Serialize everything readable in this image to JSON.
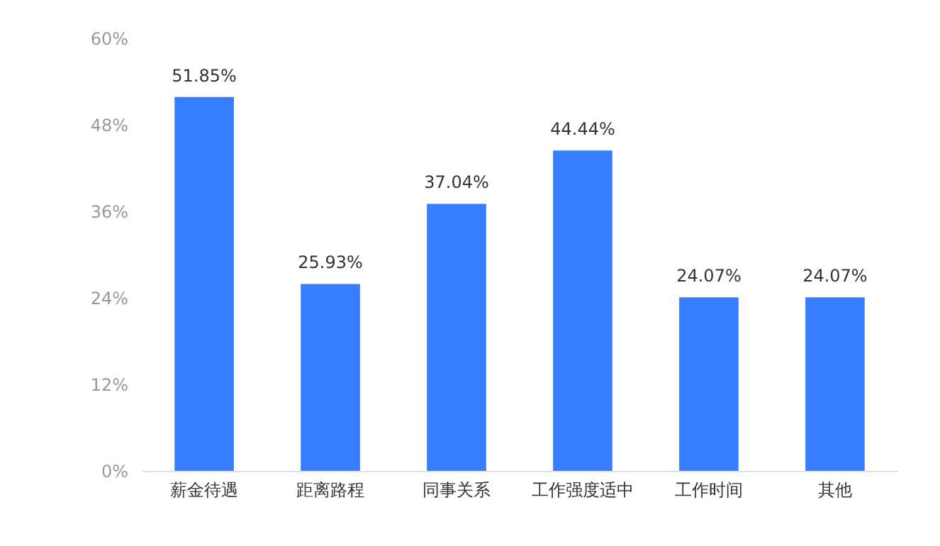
{
  "chart_data": {
    "type": "bar",
    "categories": [
      "薪金待遇",
      "距离路程",
      "同事关系",
      "工作强度适中",
      "工作时间",
      "其他"
    ],
    "values": [
      51.85,
      25.93,
      37.04,
      44.44,
      24.07,
      24.07
    ],
    "value_labels": [
      "51.85%",
      "25.93%",
      "37.04%",
      "44.44%",
      "24.07%",
      "24.07%"
    ],
    "color": "#377dff",
    "ylim": [
      0,
      60
    ],
    "yticks": [
      {
        "value": 0,
        "label": "0%"
      },
      {
        "value": 12,
        "label": "12%"
      },
      {
        "value": 24,
        "label": "24%"
      },
      {
        "value": 36,
        "label": "36%"
      },
      {
        "value": 48,
        "label": "48%"
      },
      {
        "value": 60,
        "label": "60%"
      }
    ],
    "grid": false
  }
}
